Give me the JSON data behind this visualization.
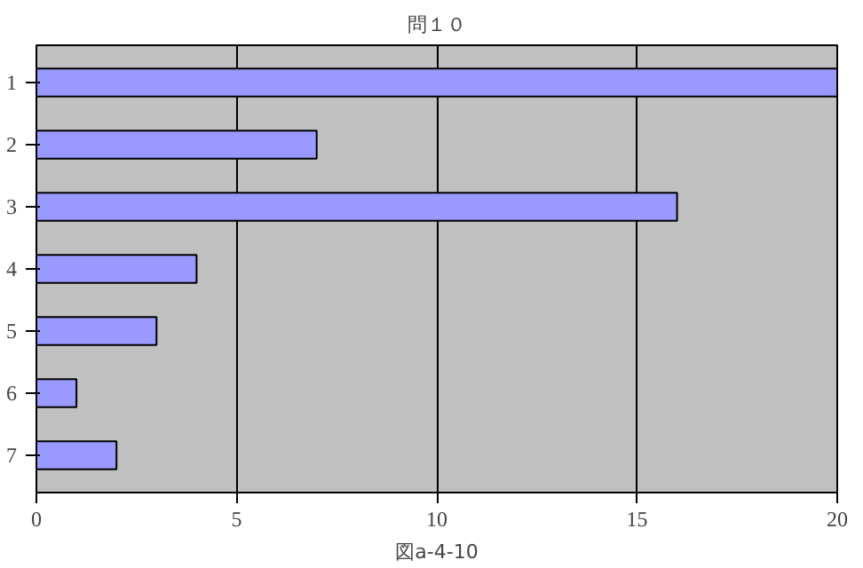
{
  "chart_data": {
    "type": "bar",
    "orientation": "horizontal",
    "title": "問１０",
    "xlabel": "図a-4-10",
    "categories": [
      "1",
      "2",
      "3",
      "4",
      "5",
      "6",
      "7"
    ],
    "values": [
      20,
      7,
      16,
      4,
      3,
      1,
      2
    ],
    "color": "#9999ff",
    "xlim": [
      0,
      20
    ],
    "xticks": [
      0,
      5,
      10,
      15,
      20
    ],
    "grid": "x"
  }
}
